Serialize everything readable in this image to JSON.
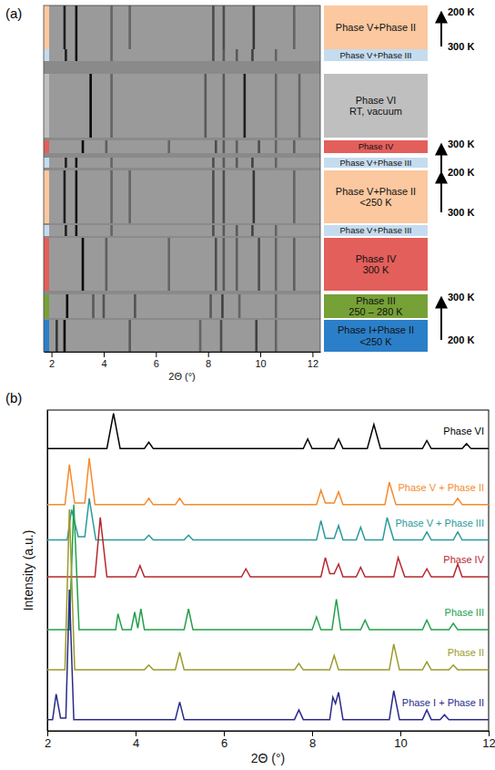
{
  "chart_data": [
    {
      "type": "image",
      "panel": "(a)",
      "x_label": "2Θ (°)",
      "xlim": [
        1.7,
        12.3
      ],
      "xticks": [
        2,
        4,
        6,
        8,
        10,
        12
      ],
      "ylim": [
        0,
        380
      ],
      "tick_labels": "x",
      "bands": [
        {
          "label": [
            "Phase V+Phase II"
          ],
          "color": "#fbc8a0",
          "start": 332,
          "end": 380,
          "peaks": [
            2.5,
            2.95,
            4.3,
            5.0,
            8.2,
            8.6,
            9.75,
            11.3
          ],
          "peak_intensities": [
            0.8,
            0.9,
            0.2,
            0.2,
            0.4,
            0.4,
            0.6,
            0.2
          ]
        },
        {
          "label": [
            "Phase V+Phase III"
          ],
          "color": "#c5dcef",
          "start": 319,
          "end": 332,
          "peaks": [
            2.55,
            2.95,
            4.3,
            8.2,
            8.6,
            9.1,
            9.7,
            10.6
          ],
          "peak_intensities": [
            0.8,
            0.9,
            0.2,
            0.4,
            0.3,
            0.3,
            0.5,
            0.2
          ]
        },
        {
          "label": [
            "Phase VI",
            "RT, vacuum"
          ],
          "color": "#bfbfbf",
          "start": 235,
          "end": 305,
          "peaks": [
            3.5,
            4.3,
            7.9,
            8.6,
            9.4,
            10.6,
            11.5
          ],
          "peak_intensities": [
            1,
            0.2,
            0.3,
            0.3,
            0.8,
            0.2,
            0.2
          ]
        },
        {
          "label": [
            "Phase IV"
          ],
          "color": "#e35f5b",
          "start": 218,
          "end": 232,
          "peaks": [
            3.2,
            4.1,
            6.5,
            8.3,
            8.6,
            9.1,
            9.95,
            10.6,
            11.3
          ],
          "peak_intensities": [
            1,
            0.25,
            0.2,
            0.4,
            0.3,
            0.25,
            0.4,
            0.2,
            0.25
          ]
        },
        {
          "label": [
            "Phase V+Phase III"
          ],
          "color": "#c5dcef",
          "start": 202,
          "end": 213,
          "peaks": [
            2.55,
            2.95,
            4.3,
            8.2,
            8.6,
            9.1,
            9.7,
            10.6
          ],
          "peak_intensities": [
            0.8,
            0.9,
            0.2,
            0.4,
            0.3,
            0.3,
            0.5,
            0.2
          ]
        },
        {
          "label": [
            "Phase V+Phase II",
            "<250 K"
          ],
          "color": "#fbc8a0",
          "start": 141,
          "end": 199,
          "peaks": [
            2.5,
            2.95,
            4.3,
            5.0,
            8.2,
            8.6,
            9.75,
            11.3
          ],
          "peak_intensities": [
            0.8,
            0.9,
            0.2,
            0.2,
            0.4,
            0.4,
            0.6,
            0.2
          ]
        },
        {
          "label": [
            "Phase V+Phase III"
          ],
          "color": "#c5dcef",
          "start": 127,
          "end": 139,
          "peaks": [
            2.55,
            2.95,
            4.3,
            8.2,
            8.6,
            9.1,
            9.7,
            10.6
          ],
          "peak_intensities": [
            0.8,
            0.9,
            0.2,
            0.4,
            0.3,
            0.3,
            0.5,
            0.2
          ]
        },
        {
          "label": [
            "Phase IV",
            "300 K"
          ],
          "color": "#e35f5b",
          "start": 67,
          "end": 125,
          "peaks": [
            3.2,
            4.1,
            6.5,
            8.3,
            8.6,
            9.1,
            9.95,
            10.6,
            11.3
          ],
          "peak_intensities": [
            1,
            0.25,
            0.2,
            0.4,
            0.3,
            0.25,
            0.4,
            0.2,
            0.25
          ]
        },
        {
          "label": [
            "Phase III",
            "250 – 280 K"
          ],
          "color": "#76a136",
          "start": 37,
          "end": 63,
          "peaks": [
            2.6,
            3.6,
            4.0,
            5.2,
            8.1,
            8.55,
            9.2,
            10.6
          ],
          "peak_intensities": [
            1,
            0.3,
            0.35,
            0.35,
            0.3,
            0.5,
            0.2,
            0.2
          ]
        },
        {
          "label": [
            "Phase I+Phase II",
            "<250 K"
          ],
          "color": "#2b7fc8",
          "start": 0,
          "end": 35,
          "peaks": [
            2.2,
            2.5,
            5.0,
            7.7,
            8.5,
            9.85,
            10.6
          ],
          "peak_intensities": [
            0.6,
            1,
            0.3,
            0.2,
            0.4,
            0.5,
            0.2
          ]
        }
      ],
      "ramps": [
        {
          "labels": [
            "300 K",
            "200 K"
          ],
          "rows": [
            335,
            373
          ]
        },
        {
          "labels": [
            "300 K",
            "200 K",
            "300 K"
          ],
          "rows": [
            153,
            197,
            228
          ]
        },
        {
          "labels": [
            "200 K",
            "300 K"
          ],
          "rows": [
            13,
            60
          ]
        }
      ]
    },
    {
      "type": "line",
      "panel": "(b)",
      "x_label": "2Θ (°)",
      "y_label": "Intensity (a.u.)",
      "xlim": [
        2,
        12
      ],
      "xticks": [
        2,
        4,
        6,
        8,
        10,
        12
      ],
      "ylim": [
        0,
        100
      ],
      "yticks": [],
      "tick_labels": "x",
      "series": [
        {
          "name": "Phase VI",
          "color": "#000000",
          "x": [
            2,
            3.35,
            3.5,
            3.65,
            4.2,
            4.3,
            4.4,
            7.8,
            7.9,
            8.0,
            8.5,
            8.6,
            8.7,
            9.25,
            9.4,
            9.55,
            10.5,
            10.6,
            10.7,
            11.4,
            11.5,
            11.6,
            12
          ],
          "values": [
            88,
            88,
            99,
            88,
            88,
            90,
            88,
            88,
            91,
            88,
            88,
            91,
            88,
            88,
            95.5,
            88,
            88,
            90.5,
            88,
            88,
            89.5,
            88,
            88
          ]
        },
        {
          "name": "Phase V + Phase II",
          "color": "#f58a2c",
          "x": [
            2,
            2.4,
            2.5,
            2.62,
            2.85,
            2.95,
            3.08,
            4.2,
            4.3,
            4.4,
            4.9,
            5.0,
            5.1,
            8.1,
            8.2,
            8.3,
            8.5,
            8.6,
            8.7,
            9.65,
            9.75,
            9.9,
            11.2,
            11.3,
            11.4,
            12
          ],
          "values": [
            70.5,
            70.5,
            83,
            71,
            71,
            85,
            70.5,
            70.5,
            72.5,
            70.5,
            70.5,
            72.5,
            70.5,
            70.5,
            75,
            71,
            71,
            74.5,
            70.5,
            70.5,
            77.5,
            70.5,
            70.5,
            72.5,
            70.5,
            70.5
          ]
        },
        {
          "name": "Phase V + Phase III",
          "color": "#2a9a9a",
          "x": [
            2,
            2.45,
            2.55,
            2.7,
            2.85,
            2.95,
            3.1,
            4.2,
            4.3,
            4.4,
            5.1,
            5.2,
            5.3,
            8.1,
            8.2,
            8.3,
            8.5,
            8.6,
            8.7,
            9.0,
            9.1,
            9.2,
            9.6,
            9.7,
            9.85,
            10.5,
            10.6,
            10.7,
            11.2,
            11.3,
            11.4,
            12
          ],
          "values": [
            59.5,
            59.5,
            69,
            60.5,
            60.5,
            72.5,
            59.5,
            59.5,
            61,
            59.5,
            59.5,
            61,
            59.5,
            59.5,
            65.5,
            60,
            60,
            64,
            59.5,
            59.5,
            63.5,
            59.5,
            59.5,
            66.5,
            59.5,
            59.5,
            62,
            59.5,
            59.5,
            62,
            59.5,
            59.5
          ]
        },
        {
          "name": "Phase IV",
          "color": "#b5282e",
          "x": [
            2,
            3.08,
            3.2,
            3.35,
            4.0,
            4.1,
            4.2,
            6.4,
            6.5,
            6.6,
            8.2,
            8.3,
            8.4,
            8.5,
            8.6,
            8.7,
            9.0,
            9.1,
            9.2,
            9.85,
            9.95,
            10.1,
            10.5,
            10.6,
            10.7,
            11.2,
            11.3,
            11.4,
            12
          ],
          "values": [
            48,
            48,
            66.5,
            48,
            48,
            51.5,
            48,
            48,
            50.5,
            48,
            48,
            54,
            49,
            49,
            52,
            48,
            48,
            51,
            48,
            48,
            54,
            48,
            48,
            50.5,
            48,
            48,
            52,
            48,
            48
          ]
        },
        {
          "name": "Phase III",
          "color": "#21a04a",
          "x": [
            2,
            2.5,
            2.6,
            2.72,
            3.55,
            3.6,
            3.7,
            3.9,
            3.98,
            4.05,
            4.12,
            4.2,
            5.1,
            5.2,
            5.3,
            8.0,
            8.1,
            8.2,
            8.45,
            8.55,
            8.65,
            9.1,
            9.2,
            9.3,
            10.5,
            10.6,
            10.7,
            11.1,
            11.2,
            11.3,
            12
          ],
          "values": [
            31.5,
            31.5,
            70.5,
            31.5,
            31.5,
            36.5,
            31.5,
            31.5,
            37,
            32,
            38,
            31.5,
            31.5,
            38,
            31.5,
            31.5,
            35.5,
            31.5,
            31.5,
            41,
            31.5,
            31.5,
            34.5,
            31.5,
            31.5,
            34.5,
            31.5,
            31.5,
            33.5,
            31.5,
            31.5
          ]
        },
        {
          "name": "Phase II",
          "color": "#9a9a2a",
          "x": [
            2,
            2.4,
            2.5,
            2.62,
            4.2,
            4.3,
            4.4,
            4.9,
            5.0,
            5.1,
            7.6,
            7.7,
            7.8,
            8.4,
            8.5,
            8.6,
            9.75,
            9.85,
            9.98,
            10.5,
            10.6,
            10.7,
            11.1,
            11.2,
            11.3,
            12
          ],
          "values": [
            19,
            19,
            69,
            19,
            19,
            20.5,
            19,
            19,
            24.5,
            19,
            19,
            21,
            19,
            19,
            23.5,
            19,
            19,
            27,
            19,
            19,
            21.5,
            19,
            19,
            20.5,
            19,
            19
          ]
        },
        {
          "name": "Phase I + Phase II",
          "color": "#2a2a8a",
          "x": [
            2,
            2.12,
            2.2,
            2.3,
            2.42,
            2.5,
            2.6,
            4.9,
            5.0,
            5.1,
            7.6,
            7.7,
            7.8,
            8.4,
            8.47,
            8.53,
            8.6,
            8.7,
            9.75,
            9.85,
            9.98,
            10.5,
            10.6,
            10.7,
            10.9,
            11.0,
            11.1,
            12
          ],
          "values": [
            3.5,
            3.5,
            11.5,
            4,
            4,
            44,
            3.5,
            3.5,
            9,
            3.5,
            3.5,
            6.5,
            3.5,
            3.5,
            10.5,
            8.5,
            12,
            3.5,
            3.5,
            12.5,
            3.5,
            3.5,
            6.5,
            3.5,
            3.5,
            5,
            3.5,
            3.5
          ]
        }
      ]
    }
  ]
}
